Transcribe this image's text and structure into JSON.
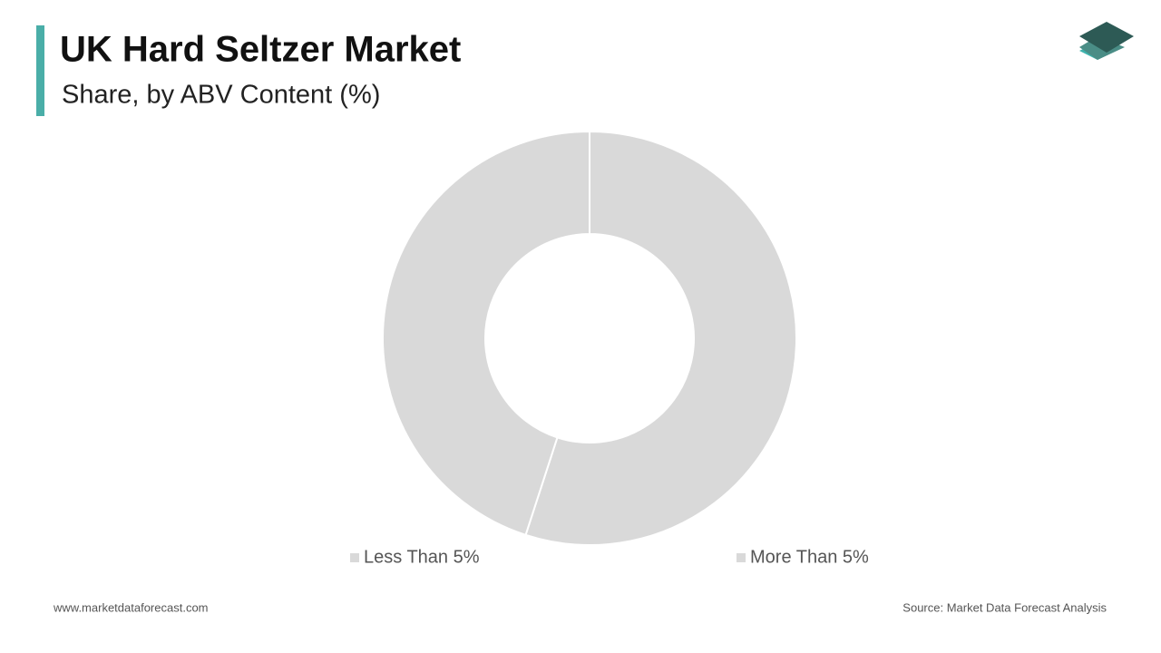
{
  "chart_data": {
    "type": "pie",
    "title": "UK Hard Seltzer Market",
    "subtitle": "Share, by ABV Content (%)",
    "categories": [
      "Less Than 5%",
      "More Than 5%"
    ],
    "values": [
      55,
      45
    ],
    "colors": [
      "#d9d9d9",
      "#d9d9d9"
    ],
    "hole": true,
    "legend": "bottom"
  },
  "footer": {
    "website": "www.marketdataforecast.com",
    "source": "Source: Market Data Forecast Analysis"
  }
}
